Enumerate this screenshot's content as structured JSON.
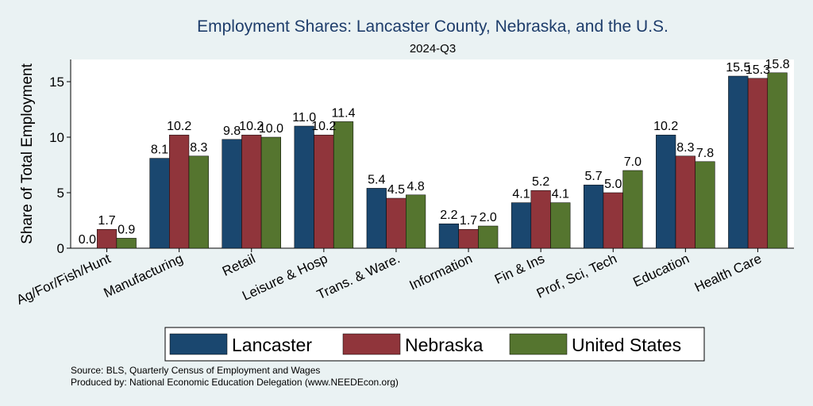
{
  "chart_data": {
    "type": "bar",
    "title": "Employment Shares: Lancaster County, Nebraska, and the U.S.",
    "subtitle": "2024-Q3",
    "ylabel": "Share of Total Employment",
    "xlabel": "",
    "ylim": [
      0,
      17
    ],
    "yticks": [
      0,
      5,
      10,
      15
    ],
    "categories": [
      "Ag/For/Fish/Hunt",
      "Manufacturing",
      "Retail",
      "Leisure & Hosp",
      "Trans. & Ware.",
      "Information",
      "Fin & Ins",
      "Prof, Sci, Tech",
      "Education",
      "Health Care"
    ],
    "series": [
      {
        "name": "Lancaster",
        "color": "#1a476f",
        "values": [
          0.0,
          8.1,
          9.8,
          11.0,
          5.4,
          2.2,
          4.1,
          5.7,
          10.2,
          15.5
        ]
      },
      {
        "name": "Nebraska",
        "color": "#90353b",
        "values": [
          1.7,
          10.2,
          10.2,
          10.2,
          4.5,
          1.7,
          5.2,
          5.0,
          8.3,
          15.3
        ]
      },
      {
        "name": "United States",
        "color": "#55752f",
        "values": [
          0.9,
          8.3,
          10.0,
          11.4,
          4.8,
          2.0,
          4.1,
          7.0,
          7.8,
          15.8
        ]
      }
    ],
    "value_labels": [
      [
        "0.0",
        "8.1",
        "9.8",
        "11.0",
        "5.4",
        "2.2",
        "4.1",
        "5.7",
        "10.2",
        "15.5"
      ],
      [
        "1.7",
        "10.2",
        "10.2",
        "10.2",
        "4.5",
        "1.7",
        "5.2",
        "5.0",
        "8.3",
        "15.3"
      ],
      [
        "0.9",
        "8.3",
        "10.0",
        "11.4",
        "4.8",
        "2.0",
        "4.1",
        "7.0",
        "7.8",
        "15.8"
      ]
    ],
    "grid": false,
    "legend_position": "bottom"
  },
  "footer": {
    "source": "Source: BLS, Quarterly Census of Employment and Wages",
    "produced_by": "Produced by: National Economic Education Delegation (www.NEEDEcon.org)"
  }
}
